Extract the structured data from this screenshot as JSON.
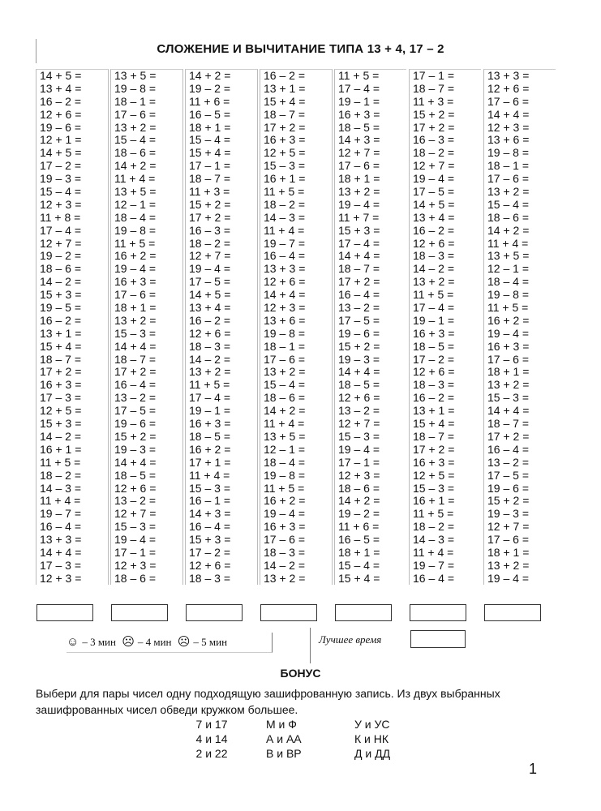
{
  "title": "СЛОЖЕНИЕ И ВЫЧИТАНИЕ ТИПА 13 + 4, 17 – 2",
  "columns": [
    [
      "14 + 5 =",
      "13 + 4 =",
      "16 – 2 =",
      "12 + 6 =",
      "19 – 6 =",
      "12 + 1 =",
      "14 + 5 =",
      "17 – 2 =",
      "19 – 3 =",
      "15 – 4 =",
      "12 + 3 =",
      "11 + 8 =",
      "17 – 4 =",
      "12 + 7 =",
      "19 – 2 =",
      "18 – 6 =",
      "14 – 2 =",
      "15 + 3 =",
      "19 – 5 =",
      "16 – 2 =",
      "13 + 1 =",
      "15 + 4 =",
      "18 – 7 =",
      "17 + 2 =",
      "16 + 3 =",
      "17 – 3 =",
      "12 + 5 =",
      "15 + 3 =",
      "14 – 2 =",
      "16 + 1 =",
      "11 + 5 =",
      "18 – 2 =",
      "14 – 3 =",
      "11 + 4 =",
      "19 – 7 =",
      "16 – 4 =",
      "13 + 3 =",
      "14 + 4 =",
      "17 – 3 =",
      "12 + 3 ="
    ],
    [
      "13 + 5 =",
      "19 – 8 =",
      "18 – 1 =",
      "17 – 6 =",
      "13 + 2 =",
      "15 – 4 =",
      "18 – 6 =",
      "14 + 2 =",
      "11 + 4 =",
      "13 + 5 =",
      "12 – 1 =",
      "18 – 4 =",
      "19 – 8 =",
      "11 + 5 =",
      "16 + 2 =",
      "19 – 4 =",
      "16 + 3 =",
      "17 – 6 =",
      "18 + 1 =",
      "13 + 2 =",
      "15 – 3 =",
      "14 + 4 =",
      "18 – 7 =",
      "17 + 2 =",
      "16 – 4 =",
      "13 – 2 =",
      "17 – 5 =",
      "19 – 6 =",
      "15 + 2 =",
      "19 – 3 =",
      "14 + 4 =",
      "18 – 5 =",
      "12 + 6 =",
      "13 – 2 =",
      "12 + 7 =",
      "15 – 3 =",
      "19 – 4 =",
      "17 – 1 =",
      "12 + 3 =",
      "18 – 6 ="
    ],
    [
      "14 + 2 =",
      "19 – 2 =",
      "11 + 6 =",
      "16 – 5 =",
      "18 + 1 =",
      "15 – 4 =",
      "15 + 4 =",
      "17 – 1 =",
      "18 – 7 =",
      "11 + 3 =",
      "15 + 2 =",
      "17 + 2 =",
      "16 – 3 =",
      "18 – 2 =",
      "12 + 7 =",
      "19 – 4 =",
      "17 – 5 =",
      "14 + 5 =",
      "13 + 4 =",
      "16 – 2 =",
      "12 + 6 =",
      "18 – 3 =",
      "14 – 2 =",
      "13 + 2 =",
      "11 + 5 =",
      "17 – 4 =",
      "19 – 1 =",
      "16 + 3 =",
      "18 – 5 =",
      "16 + 2 =",
      "17 + 1 =",
      "11 + 4 =",
      "15 – 3 =",
      "16 – 1 =",
      "14 + 3 =",
      "16 – 4 =",
      "15 + 3 =",
      "17 – 2 =",
      "12 + 6 =",
      "18 – 3 ="
    ],
    [
      "16 – 2 =",
      "13 + 1 =",
      "15 + 4 =",
      "18 – 7 =",
      "17 + 2 =",
      "16 + 3 =",
      "12 + 5 =",
      "15 – 3 =",
      "16 + 1 =",
      "11 + 5 =",
      "18 – 2 =",
      "14 – 3 =",
      "11 + 4 =",
      "19 – 7 =",
      "16 – 4 =",
      "13 + 3 =",
      "12 + 6 =",
      "14 + 4 =",
      "12 + 3 =",
      "13 + 6 =",
      "19 – 8 =",
      "18 – 1 =",
      "17 – 6 =",
      "13 + 2 =",
      "15 – 4 =",
      "18 – 6 =",
      "14 + 2 =",
      "11 + 4 =",
      "13 + 5 =",
      "12 – 1 =",
      "18 – 4 =",
      "19 – 8 =",
      "11 + 5 =",
      "16 + 2 =",
      "19 – 4 =",
      "16 + 3 =",
      "17 – 6 =",
      "18 – 3 =",
      "14 – 2 =",
      "13 + 2 ="
    ],
    [
      "11 + 5 =",
      "17 – 4 =",
      "19 – 1 =",
      "16 + 3 =",
      "18 – 5 =",
      "14 + 3 =",
      "12 + 7 =",
      "17 – 6 =",
      "18 + 1 =",
      "13 + 2 =",
      "19 – 4 =",
      "11 + 7 =",
      "15 + 3 =",
      "17 – 4 =",
      "14 + 4 =",
      "18 – 7 =",
      "17 + 2 =",
      "16 – 4 =",
      "13 – 2 =",
      "17 – 5 =",
      "19 – 6 =",
      "15 + 2 =",
      "19 – 3 =",
      "14 + 4 =",
      "18 – 5 =",
      "12 + 6 =",
      "13 – 2 =",
      "12 + 7 =",
      "15 – 3 =",
      "19 – 4 =",
      "17 – 1 =",
      "12 + 3 =",
      "18 – 6 =",
      "14 + 2 =",
      "19 – 2 =",
      "11 + 6 =",
      "16 – 5 =",
      "18 + 1 =",
      "15 – 4 =",
      "15 + 4 ="
    ],
    [
      "17 – 1 =",
      "18 – 7 =",
      "11 + 3 =",
      "15 + 2 =",
      "17 + 2 =",
      "16 – 3 =",
      "18 – 2 =",
      "12 + 7 =",
      "19 – 4 =",
      "17 – 5 =",
      "14 + 5 =",
      "13 + 4 =",
      "16 – 2 =",
      "12 + 6 =",
      "18 – 3 =",
      "14 – 2 =",
      "13 + 2 =",
      "11 + 5 =",
      "17 – 4 =",
      "19 – 1 =",
      "16 + 3 =",
      "18 – 5 =",
      "17 – 2 =",
      "12 + 6 =",
      "18 – 3 =",
      "16 – 2 =",
      "13 + 1 =",
      "15 + 4 =",
      "18 – 7 =",
      "17 + 2 =",
      "16 + 3 =",
      "12 + 5 =",
      "15 – 3 =",
      "16 + 1 =",
      "11 + 5 =",
      "18 – 2 =",
      "14 – 3 =",
      "11 + 4 =",
      "19 – 7 =",
      "16 – 4 ="
    ],
    [
      "13 + 3 =",
      "12 + 6 =",
      "17 – 6 =",
      "14 + 4 =",
      "12 + 3 =",
      "13 + 6 =",
      "19 – 8 =",
      "18 – 1 =",
      "17 – 6 =",
      "13 + 2 =",
      "15 – 4 =",
      "18 – 6 =",
      "14 + 2 =",
      "11 + 4 =",
      "13 + 5 =",
      "12 – 1 =",
      "18 – 4 =",
      "19 – 8 =",
      "11 + 5 =",
      "16 + 2 =",
      "19 – 4 =",
      "16 + 3 =",
      "17 – 6 =",
      "18 + 1 =",
      "13 + 2 =",
      "15 – 3 =",
      "14 + 4 =",
      "18 – 7 =",
      "17 + 2 =",
      "16 – 4 =",
      "13 – 2 =",
      "17 – 5 =",
      "19 – 6 =",
      "15 + 2 =",
      "19 – 3 =",
      "12 + 7 =",
      "17 – 6 =",
      "18 + 1 =",
      "13 + 2 =",
      "19 – 4 ="
    ]
  ],
  "timing": {
    "items": [
      {
        "icon": "smile-face-icon",
        "glyph": "☺",
        "label": "– 3 мин"
      },
      {
        "icon": "neutral-face-icon",
        "glyph": "😐",
        "label": "– 4 мин"
      },
      {
        "icon": "sad-face-icon",
        "glyph": "☹",
        "label": "– 5 мин"
      }
    ],
    "best_time_label": "Лучшее время"
  },
  "bonus": {
    "title": "БОНУС",
    "instructions": "Выбери для пары чисел одну подходящую зашифрованную запись. Из двух выбранных зашифрованных чисел обведи кружком большее.",
    "pairs": [
      "7 и 17",
      "4 и 14",
      "2 и 22"
    ],
    "codes_a": [
      "М и Ф",
      "А и АА",
      "В и ВР"
    ],
    "codes_b": [
      "У и УС",
      "К и НК",
      "Д и ДД"
    ]
  },
  "page_number": "1"
}
